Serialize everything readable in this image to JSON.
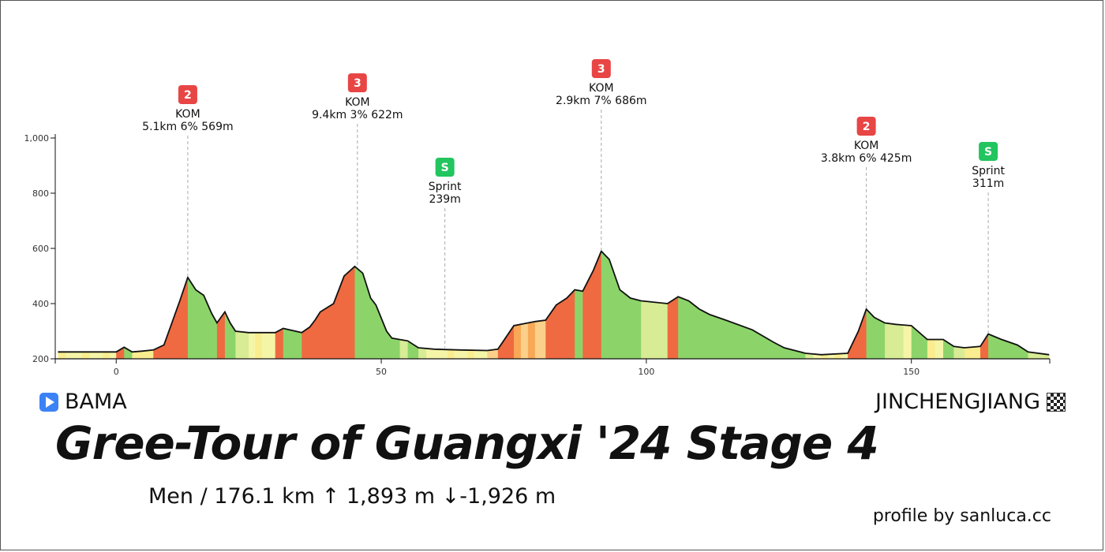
{
  "chart_data": {
    "type": "area",
    "xlim": [
      -11.5,
      176.1
    ],
    "ylim": [
      200,
      1000
    ],
    "x_ticks": [
      0,
      50,
      100,
      150
    ],
    "x_tick_labels": [
      "0",
      "50",
      "100",
      "150"
    ],
    "y_ticks": [
      200,
      400,
      600,
      800,
      1000
    ],
    "y_tick_labels": [
      "200",
      "400",
      "600",
      "800",
      "1,000"
    ],
    "grid": false,
    "profile": {
      "x": [
        -11,
        -5,
        0,
        1.5,
        3,
        5,
        7,
        9,
        12,
        13.5,
        15,
        16.5,
        18,
        19,
        20.5,
        21.5,
        22.5,
        25,
        30,
        31.5,
        35,
        36.5,
        37.5,
        38.5,
        41,
        43,
        45,
        46.5,
        48,
        49,
        51,
        52,
        55,
        57,
        60,
        65,
        70,
        72,
        75,
        79,
        81,
        83,
        85,
        86.5,
        88,
        90,
        91.5,
        93,
        95,
        97,
        99,
        104,
        106,
        108,
        110,
        112,
        115,
        120,
        124,
        126,
        130,
        133,
        138,
        140,
        141.5,
        143,
        145,
        147,
        150,
        153,
        156,
        158,
        160,
        163,
        164.5,
        167,
        170,
        172,
        176
      ],
      "y": [
        225,
        225,
        225,
        242,
        225,
        228,
        232,
        250,
        410,
        495,
        450,
        430,
        365,
        330,
        370,
        330,
        300,
        295,
        295,
        310,
        295,
        315,
        340,
        370,
        400,
        500,
        535,
        510,
        420,
        395,
        300,
        275,
        265,
        240,
        235,
        232,
        230,
        235,
        320,
        335,
        340,
        395,
        420,
        450,
        445,
        520,
        590,
        560,
        450,
        420,
        410,
        400,
        425,
        410,
        380,
        360,
        340,
        305,
        260,
        240,
        220,
        215,
        220,
        300,
        380,
        350,
        330,
        325,
        320,
        270,
        270,
        245,
        240,
        245,
        290,
        270,
        250,
        225,
        215
      ]
    },
    "gradient_colors": {
      "easy": "#f5f5a8",
      "light_green": "#d7ec95",
      "green": "#8cd46a",
      "yellow": "#f9ed8f",
      "orange_light": "#fbd08a",
      "orange": "#f8a856",
      "red": "#ef6a40"
    },
    "markers": [
      {
        "type": "KOM",
        "badge": "2",
        "badge_color": "#e84545",
        "x": 13.5,
        "y": 495,
        "label": "KOM",
        "detail": "5.1km 6% 569m"
      },
      {
        "type": "KOM",
        "badge": "3",
        "badge_color": "#e84545",
        "x": 45.5,
        "y": 535,
        "label": "KOM",
        "detail": "9.4km 3% 622m"
      },
      {
        "type": "Sprint",
        "badge": "S",
        "badge_color": "#22c55e",
        "x": 62,
        "y": 239,
        "label": "Sprint",
        "detail": "239m"
      },
      {
        "type": "KOM",
        "badge": "3",
        "badge_color": "#e84545",
        "x": 91.5,
        "y": 590,
        "label": "KOM",
        "detail": "2.9km 7% 686m"
      },
      {
        "type": "KOM",
        "badge": "2",
        "badge_color": "#e84545",
        "x": 141.5,
        "y": 380,
        "label": "KOM",
        "detail": "3.8km 6% 425m"
      },
      {
        "type": "Sprint",
        "badge": "S",
        "badge_color": "#22c55e",
        "x": 164.5,
        "y": 290,
        "label": "Sprint",
        "detail": "311m"
      }
    ]
  },
  "start_town": "BAMA",
  "finish_town": "JINCHENGJIANG",
  "title": "Gree-Tour of Guangxi '24 Stage 4",
  "stats": "Men  /  176.1 km   ↑ 1,893 m   ↓-1,926 m",
  "credit": "profile by sanluca.cc"
}
